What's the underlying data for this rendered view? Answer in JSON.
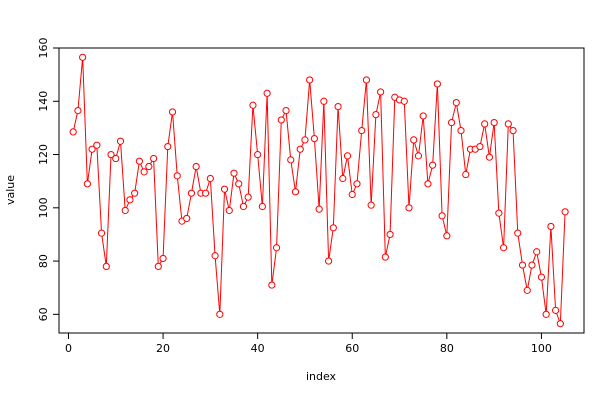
{
  "chart_data": {
    "type": "line",
    "xlabel": "index",
    "ylabel": "value",
    "xlim": [
      -2,
      109
    ],
    "ylim": [
      53,
      160
    ],
    "x_ticks": [
      0,
      20,
      40,
      60,
      80,
      100
    ],
    "y_ticks": [
      60,
      80,
      100,
      120,
      140,
      160
    ],
    "series_color": "#ff0000",
    "grid": false,
    "x": [
      1,
      2,
      3,
      4,
      5,
      6,
      7,
      8,
      9,
      10,
      11,
      12,
      13,
      14,
      15,
      16,
      17,
      18,
      19,
      20,
      21,
      22,
      23,
      24,
      25,
      26,
      27,
      28,
      29,
      30,
      31,
      32,
      33,
      34,
      35,
      36,
      37,
      38,
      39,
      40,
      41,
      42,
      43,
      44,
      45,
      46,
      47,
      48,
      49,
      50,
      51,
      52,
      53,
      54,
      55,
      56,
      57,
      58,
      59,
      60,
      61,
      62,
      63,
      64,
      65,
      66,
      67,
      68,
      69,
      70,
      71,
      72,
      73,
      74,
      75,
      76,
      77,
      78,
      79,
      80,
      81,
      82,
      83,
      84,
      85,
      86,
      87,
      88,
      89,
      90,
      91,
      92,
      93,
      94,
      95,
      96,
      97,
      98,
      99,
      100,
      101,
      102,
      103,
      104,
      105
    ],
    "values": [
      128.5,
      136.5,
      156.5,
      109,
      122,
      123.5,
      90.5,
      78,
      120,
      118.5,
      125,
      99,
      103,
      105.5,
      117.5,
      113.5,
      115.5,
      118.5,
      78,
      81,
      123,
      136,
      112,
      95,
      96,
      105.5,
      115.5,
      105.5,
      105.5,
      111,
      82,
      60,
      107,
      99,
      113,
      109,
      100.5,
      104,
      138.5,
      120,
      100.5,
      143,
      71,
      85,
      133,
      136.5,
      118,
      106,
      122,
      125.5,
      148,
      126,
      99.5,
      140,
      80,
      92.5,
      138,
      111,
      119.5,
      105,
      109,
      129,
      148,
      101,
      135,
      143.5,
      81.5,
      90,
      141.5,
      140.5,
      140,
      100,
      125.5,
      119.5,
      134.5,
      109,
      116,
      146.5,
      97,
      89.5,
      132,
      139.5,
      129,
      112.5,
      122,
      122,
      123,
      131.5,
      119,
      132,
      98,
      85,
      131.5,
      129,
      90.5,
      78.5,
      69,
      78.5,
      83.5,
      74,
      60,
      93,
      61.5,
      56.5,
      98.5
    ]
  }
}
